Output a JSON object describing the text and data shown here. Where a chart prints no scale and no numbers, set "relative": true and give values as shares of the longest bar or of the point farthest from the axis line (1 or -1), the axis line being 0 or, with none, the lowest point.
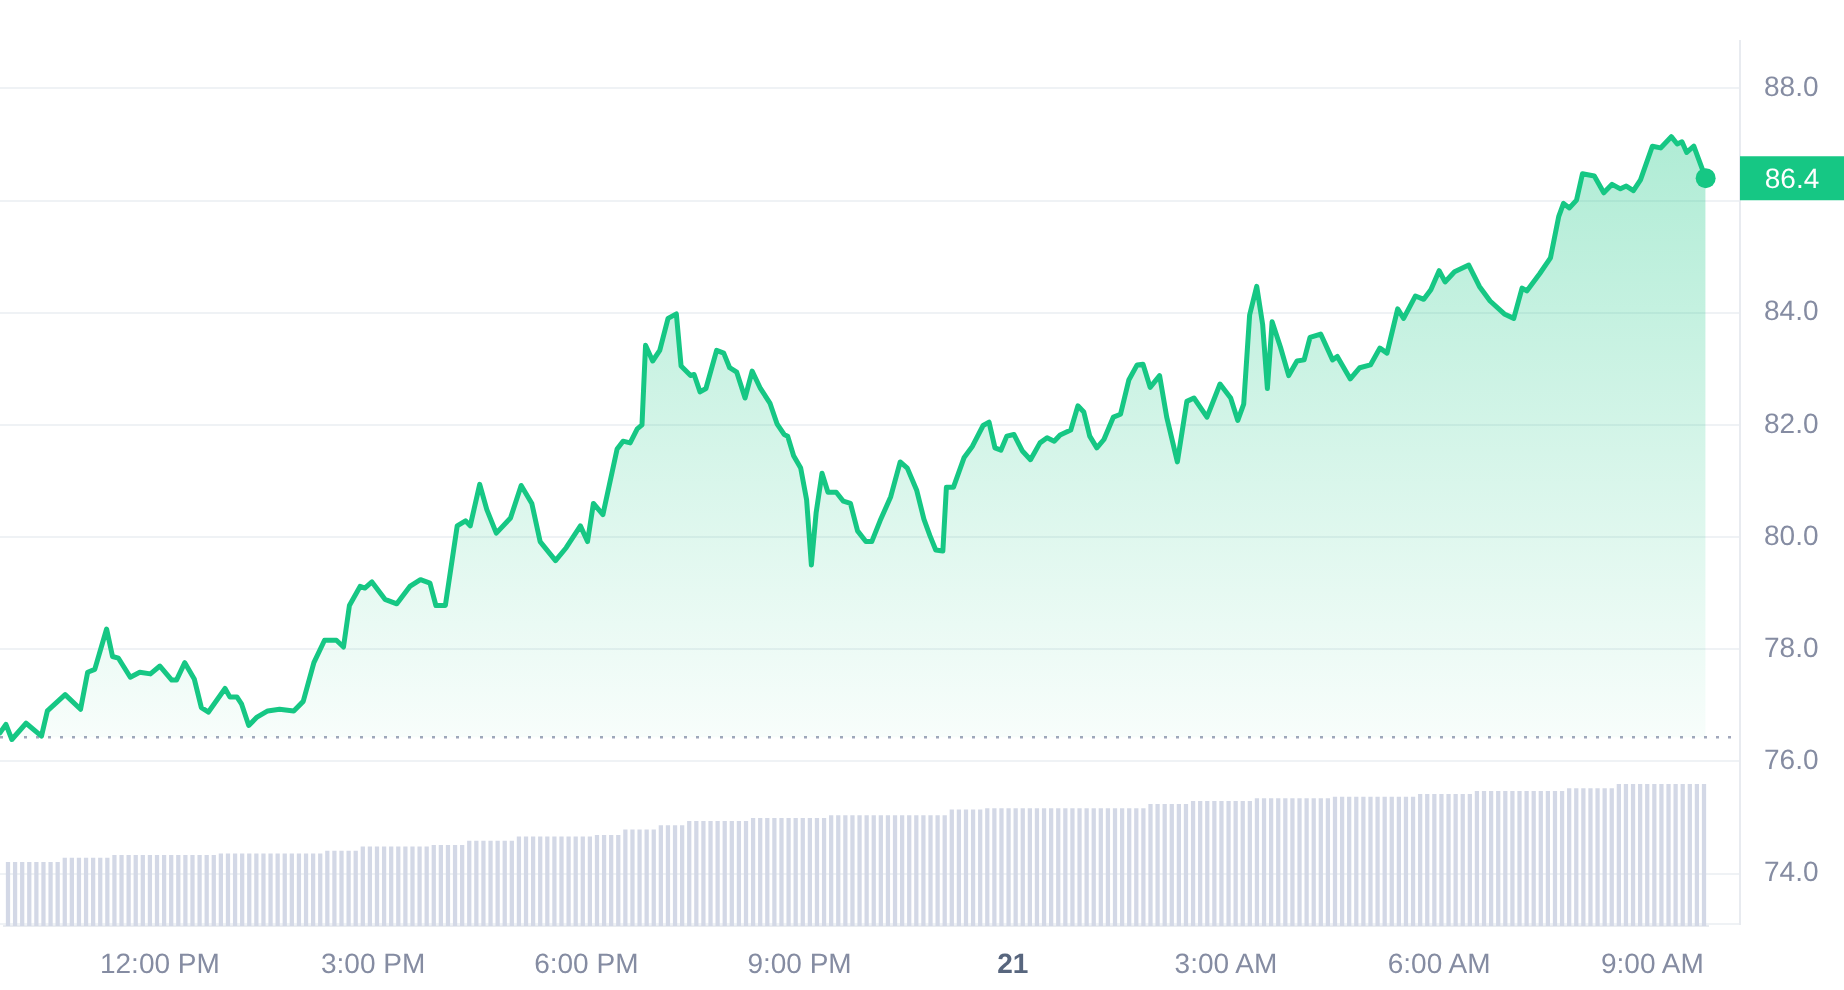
{
  "chart_data": [
    {
      "type": "area",
      "color": "#16c784",
      "x": [
        "--01-20T09:45",
        "--01-20T09:50",
        "--01-20T09:55",
        "--01-20T10:07",
        "--01-20T10:20",
        "--01-20T10:25",
        "--01-20T10:40",
        "--01-20T10:53",
        "--01-20T10:59",
        "--01-20T11:05",
        "--01-20T11:15",
        "--01-20T11:20",
        "--01-20T11:25",
        "--01-20T11:35",
        "--01-20T11:43",
        "--01-20T11:52",
        "--01-20T12:00",
        "--01-20T12:10",
        "--01-20T12:14",
        "--01-20T12:21",
        "--01-20T12:29",
        "--01-20T12:35",
        "--01-20T12:41",
        "--01-20T12:55",
        "--01-20T12:59",
        "--01-20T13:05",
        "--01-20T13:09",
        "--01-20T13:15",
        "--01-20T13:22",
        "--01-20T13:31",
        "--01-20T13:41",
        "--01-20T13:53",
        "--01-20T14:01",
        "--01-20T14:10",
        "--01-20T14:19",
        "--01-20T14:29",
        "--01-20T14:35",
        "--01-20T14:40",
        "--01-20T14:49",
        "--01-20T14:53",
        "--01-20T14:59",
        "--01-20T15:10",
        "--01-20T15:20",
        "--01-20T15:31",
        "--01-20T15:40",
        "--01-20T15:48",
        "--01-20T15:53",
        "--01-20T16:01",
        "--01-20T16:11",
        "--01-20T16:18",
        "--01-20T16:22",
        "--01-20T16:30",
        "--01-20T16:36",
        "--01-20T16:44",
        "--01-20T16:56",
        "--01-20T17:05",
        "--01-20T17:14",
        "--01-20T17:21",
        "--01-20T17:34",
        "--01-20T17:43",
        "--01-20T17:55",
        "--01-20T18:01",
        "--01-20T18:06",
        "--01-20T18:14",
        "--01-20T18:26",
        "--01-20T18:31",
        "--01-20T18:37",
        "--01-20T18:43",
        "--01-20T18:47",
        "--01-20T18:50",
        "--01-20T18:56",
        "--01-20T19:02",
        "--01-20T19:09",
        "--01-20T19:16",
        "--01-20T19:20",
        "--01-20T19:28",
        "--01-20T19:31",
        "--01-20T19:36",
        "--01-20T19:41",
        "--01-20T19:50",
        "--01-20T19:56",
        "--01-20T20:01",
        "--01-20T20:07",
        "--01-20T20:14",
        "--01-20T20:20",
        "--01-20T20:27",
        "--01-20T20:35",
        "--01-20T20:41",
        "--01-20T20:47",
        "--01-20T20:50",
        "--01-20T20:55",
        "--01-20T21:01",
        "--01-20T21:06",
        "--01-20T21:10",
        "--01-20T21:14",
        "--01-20T21:19",
        "--01-20T21:24",
        "--01-20T21:31",
        "--01-20T21:37",
        "--01-20T21:43",
        "--01-20T21:49",
        "--01-20T21:56",
        "--01-20T22:01",
        "--01-20T22:08",
        "--01-20T22:17",
        "--01-20T22:25",
        "--01-20T22:31",
        "--01-20T22:39",
        "--01-20T22:45",
        "--01-20T22:50",
        "--01-20T22:55",
        "--01-20T23:01",
        "--01-20T23:04",
        "--01-20T23:10",
        "--01-20T23:19",
        "--01-20T23:26",
        "--01-20T23:35",
        "--01-20T23:40",
        "--01-20T23:45",
        "--01-20T23:50",
        "--01-20T23:55",
        "--01-21T00:01",
        "--01-21T00:08",
        "--01-21T00:15",
        "--01-21T00:23",
        "--01-21T00:29",
        "--01-21T00:35",
        "--01-21T00:40",
        "--01-21T00:49",
        "--01-21T00:55",
        "--01-21T01:00",
        "--01-21T01:05",
        "--01-21T01:11",
        "--01-21T01:17",
        "--01-21T01:25",
        "--01-21T01:31",
        "--01-21T01:38",
        "--01-21T01:45",
        "--01-21T01:50",
        "--01-21T01:56",
        "--01-21T02:04",
        "--01-21T02:10",
        "--01-21T02:19",
        "--01-21T02:27",
        "--01-21T02:33",
        "--01-21T02:44",
        "--01-21T02:55",
        "--01-21T03:04",
        "--01-21T03:10",
        "--01-21T03:15",
        "--01-21T03:20",
        "--01-21T03:26",
        "--01-21T03:31",
        "--01-21T03:35",
        "--01-21T03:39",
        "--01-21T03:46",
        "--01-21T03:53",
        "--01-21T04:00",
        "--01-21T04:06",
        "--01-21T04:11",
        "--01-21T04:20",
        "--01-21T04:30",
        "--01-21T04:34",
        "--01-21T04:45",
        "--01-21T04:53",
        "--01-21T05:02",
        "--01-21T05:10",
        "--01-21T05:16",
        "--01-21T05:25",
        "--01-21T05:30",
        "--01-21T05:40",
        "--01-21T05:47",
        "--01-21T05:53",
        "--01-21T06:00",
        "--01-21T06:05",
        "--01-21T06:13",
        "--01-21T06:25",
        "--01-21T06:34",
        "--01-21T06:43",
        "--01-21T06:55",
        "--01-21T07:03",
        "--01-21T07:10",
        "--01-21T07:14",
        "--01-21T07:25",
        "--01-21T07:34",
        "--01-21T07:41",
        "--01-21T07:45",
        "--01-21T07:50",
        "--01-21T07:56",
        "--01-21T08:01",
        "--01-21T08:11",
        "--01-21T08:19",
        "--01-21T08:26",
        "--01-21T08:33",
        "--01-21T08:38",
        "--01-21T08:44",
        "--01-21T08:50",
        "--01-21T09:00",
        "--01-21T09:07",
        "--01-21T09:16",
        "--01-21T09:21",
        "--01-21T09:25",
        "--01-21T09:29",
        "--01-21T09:35",
        "--01-21T09:45"
      ],
      "values": [
        76.51,
        76.66,
        76.39,
        76.68,
        76.45,
        76.9,
        77.19,
        76.93,
        77.59,
        77.64,
        78.36,
        77.87,
        77.84,
        77.5,
        77.59,
        77.56,
        77.7,
        77.45,
        77.45,
        77.76,
        77.47,
        76.96,
        76.88,
        77.3,
        77.15,
        77.15,
        77.02,
        76.64,
        76.79,
        76.9,
        76.93,
        76.9,
        77.07,
        77.76,
        78.16,
        78.16,
        78.04,
        78.78,
        79.12,
        79.09,
        79.2,
        78.89,
        78.81,
        79.12,
        79.24,
        79.18,
        78.78,
        78.78,
        80.2,
        80.29,
        80.2,
        80.94,
        80.49,
        80.07,
        80.34,
        80.92,
        80.6,
        79.92,
        79.58,
        79.81,
        80.2,
        79.92,
        80.6,
        80.4,
        81.57,
        81.71,
        81.68,
        81.93,
        82,
        83.42,
        83.14,
        83.33,
        83.9,
        83.98,
        83.05,
        82.88,
        82.9,
        82.59,
        82.65,
        83.33,
        83.28,
        83.02,
        82.94,
        82.48,
        82.96,
        82.65,
        82.39,
        82.02,
        81.83,
        81.8,
        81.45,
        81.23,
        80.66,
        79.5,
        80.43,
        81.14,
        80.8,
        80.8,
        80.64,
        80.6,
        80.11,
        79.92,
        79.92,
        80.29,
        80.72,
        81.34,
        81.23,
        80.83,
        80.32,
        80.03,
        79.77,
        79.75,
        80.89,
        80.89,
        81.42,
        81.62,
        81.99,
        82.05,
        81.59,
        81.55,
        81.8,
        81.83,
        81.54,
        81.38,
        81.68,
        81.77,
        81.71,
        81.82,
        81.91,
        82.34,
        82.23,
        81.8,
        81.59,
        81.74,
        82.14,
        82.19,
        82.8,
        83.07,
        83.08,
        82.67,
        82.88,
        82.14,
        81.34,
        82.42,
        82.48,
        82.14,
        82.73,
        82.48,
        82.08,
        82.37,
        83.96,
        84.47,
        83.79,
        82.65,
        83.84,
        83.39,
        82.88,
        83.14,
        83.16,
        83.56,
        83.62,
        83.16,
        83.22,
        82.82,
        83.02,
        83.07,
        83.37,
        83.28,
        84.07,
        83.9,
        84.3,
        84.24,
        84.41,
        84.75,
        84.55,
        84.73,
        84.85,
        84.47,
        84.21,
        83.98,
        83.9,
        84.44,
        84.39,
        84.7,
        84.98,
        85.72,
        85.95,
        85.87,
        86.01,
        86.48,
        86.44,
        86.14,
        86.29,
        86.21,
        86.26,
        86.18,
        86.37,
        86.97,
        86.94,
        87.14,
        87.01,
        87.05,
        86.86,
        86.97,
        86.4
      ],
      "xlim": [
        "--01-20T09:45",
        "--01-21T10:14"
      ],
      "xticks": [
        {
          "value": "--01-20T12:00",
          "label": "12:00 PM"
        },
        {
          "value": "--01-20T15:00",
          "label": "3:00 PM"
        },
        {
          "value": "--01-20T18:00",
          "label": "6:00 PM"
        },
        {
          "value": "--01-20T21:00",
          "label": "9:00 PM"
        },
        {
          "value": "--01-21T00:00",
          "label": "21"
        },
        {
          "value": "--01-21T03:00",
          "label": "3:00 AM"
        },
        {
          "value": "--01-21T06:00",
          "label": "6:00 AM"
        },
        {
          "value": "--01-21T09:00",
          "label": "9:00 AM"
        }
      ],
      "ylim": [
        73.1,
        88.85
      ],
      "yticks": [
        {
          "value": 74,
          "label": "74.0"
        },
        {
          "value": 76,
          "label": "76.0"
        },
        {
          "value": 78,
          "label": "78.0"
        },
        {
          "value": 80,
          "label": "80.0"
        },
        {
          "value": 82,
          "label": "82.0"
        },
        {
          "value": 84,
          "label": "84.0"
        },
        {
          "value": 86,
          "label": null
        },
        {
          "value": 88,
          "label": "88.0"
        }
      ],
      "grid": "y",
      "ref_lines": [
        {
          "axis": "y",
          "value": 76.43,
          "color": "#a1a7bb",
          "line_style": "dotted"
        }
      ],
      "annotations": [
        {
          "text": "86.4",
          "x": "--01-21T09:45",
          "y": 86.4
        }
      ]
    },
    {
      "type": "bar",
      "relative": true,
      "color": "#d3d8e6",
      "categories": [
        null,
        null,
        null,
        null,
        null,
        null,
        null,
        null,
        null,
        null,
        null,
        null,
        null,
        null,
        null,
        null,
        null,
        null,
        null,
        null,
        null,
        null,
        null,
        null,
        null,
        null,
        null,
        null,
        null,
        null,
        null,
        null,
        null,
        null,
        null,
        null,
        null,
        null,
        null,
        null,
        null,
        null,
        null,
        null,
        null,
        null,
        null,
        null,
        null,
        null,
        null,
        null,
        null,
        null,
        null,
        null,
        null,
        null,
        null,
        null,
        null,
        null,
        null,
        null,
        null,
        null,
        null,
        null,
        null,
        null,
        null,
        null,
        null,
        null,
        null,
        null,
        null,
        null,
        null,
        null,
        null,
        null,
        null,
        null,
        null,
        null,
        null,
        null,
        null,
        null,
        null,
        null,
        null,
        null,
        null,
        null,
        null,
        null,
        null,
        null,
        null,
        null,
        null,
        null,
        null,
        null,
        null,
        null,
        null,
        null,
        null,
        null,
        null,
        null,
        null,
        null,
        null,
        null,
        null,
        null,
        null,
        null,
        null,
        null,
        null,
        null,
        null,
        null,
        null,
        null,
        null,
        null,
        null,
        null,
        null,
        null,
        null,
        null,
        null,
        null,
        null,
        null,
        null,
        null,
        null,
        null,
        null,
        null,
        null,
        null,
        null,
        null,
        null,
        null,
        null,
        null,
        null,
        null,
        null,
        null,
        null,
        null,
        null,
        null,
        null,
        null,
        null,
        null,
        null,
        null,
        null,
        null,
        null,
        null,
        null,
        null,
        null,
        null,
        null,
        null,
        null,
        null,
        null,
        null,
        null,
        null,
        null,
        null,
        null,
        null,
        null,
        null,
        null,
        null,
        null,
        null,
        null,
        null,
        null,
        null,
        null,
        null,
        null,
        null,
        null,
        null,
        null,
        null,
        null,
        null,
        null,
        null,
        null,
        null,
        null,
        null,
        null,
        null,
        null,
        null,
        null,
        null,
        null,
        null,
        null,
        null,
        null,
        null,
        null,
        null,
        null,
        null,
        null,
        null,
        null,
        null,
        null,
        null,
        null,
        null
      ],
      "values": [
        0.45,
        0.45,
        0.45,
        0.45,
        0.45,
        0.45,
        0.45,
        0.45,
        0.48,
        0.48,
        0.48,
        0.48,
        0.48,
        0.48,
        0.48,
        0.5,
        0.5,
        0.5,
        0.5,
        0.5,
        0.5,
        0.5,
        0.5,
        0.5,
        0.5,
        0.5,
        0.5,
        0.5,
        0.5,
        0.5,
        0.51,
        0.51,
        0.51,
        0.51,
        0.51,
        0.51,
        0.51,
        0.51,
        0.51,
        0.51,
        0.51,
        0.51,
        0.51,
        0.51,
        0.51,
        0.53,
        0.53,
        0.53,
        0.53,
        0.53,
        0.56,
        0.56,
        0.56,
        0.56,
        0.56,
        0.56,
        0.56,
        0.56,
        0.56,
        0.56,
        0.57,
        0.57,
        0.57,
        0.57,
        0.57,
        0.6,
        0.6,
        0.6,
        0.6,
        0.6,
        0.6,
        0.6,
        0.63,
        0.63,
        0.63,
        0.63,
        0.63,
        0.63,
        0.63,
        0.63,
        0.63,
        0.63,
        0.63,
        0.64,
        0.64,
        0.64,
        0.64,
        0.68,
        0.68,
        0.68,
        0.68,
        0.68,
        0.71,
        0.71,
        0.71,
        0.71,
        0.74,
        0.74,
        0.74,
        0.74,
        0.74,
        0.74,
        0.74,
        0.74,
        0.74,
        0.76,
        0.76,
        0.76,
        0.76,
        0.76,
        0.76,
        0.76,
        0.76,
        0.76,
        0.76,
        0.76,
        0.78,
        0.78,
        0.78,
        0.78,
        0.78,
        0.78,
        0.78,
        0.78,
        0.78,
        0.78,
        0.78,
        0.78,
        0.78,
        0.78,
        0.78,
        0.78,
        0.78,
        0.82,
        0.82,
        0.82,
        0.82,
        0.82,
        0.83,
        0.83,
        0.83,
        0.83,
        0.83,
        0.83,
        0.83,
        0.83,
        0.83,
        0.83,
        0.83,
        0.83,
        0.83,
        0.83,
        0.83,
        0.83,
        0.83,
        0.83,
        0.83,
        0.83,
        0.83,
        0.83,
        0.83,
        0.86,
        0.86,
        0.86,
        0.86,
        0.86,
        0.86,
        0.88,
        0.88,
        0.88,
        0.88,
        0.88,
        0.88,
        0.88,
        0.88,
        0.88,
        0.9,
        0.9,
        0.9,
        0.9,
        0.9,
        0.9,
        0.9,
        0.9,
        0.9,
        0.9,
        0.9,
        0.91,
        0.91,
        0.91,
        0.91,
        0.91,
        0.91,
        0.91,
        0.91,
        0.91,
        0.91,
        0.91,
        0.91,
        0.93,
        0.93,
        0.93,
        0.93,
        0.93,
        0.93,
        0.93,
        0.93,
        0.95,
        0.95,
        0.95,
        0.95,
        0.95,
        0.95,
        0.95,
        0.95,
        0.95,
        0.95,
        0.95,
        0.95,
        0.95,
        0.97,
        0.97,
        0.97,
        0.97,
        0.97,
        0.97,
        0.97,
        1,
        1,
        1,
        1,
        1,
        1,
        1,
        1,
        1,
        1,
        1,
        1,
        1
      ]
    }
  ]
}
